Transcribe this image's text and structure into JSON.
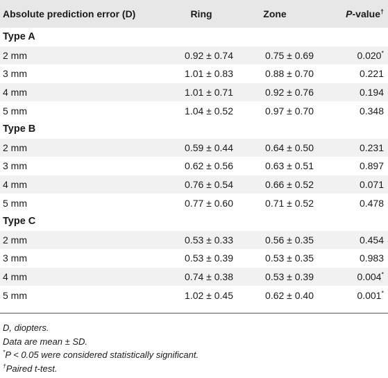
{
  "table": {
    "headers": {
      "col1": "Absolute prediction error (D)",
      "col2": "Ring",
      "col3": "Zone",
      "col4_italic": "P",
      "col4_rest": "-value",
      "col4_sup": "†"
    },
    "groups": [
      {
        "label": "Type A",
        "rows": [
          {
            "size": "2 mm",
            "ring": "0.92 ± 0.74",
            "zone": "0.75 ± 0.69",
            "p": "0.020",
            "sig": "*"
          },
          {
            "size": "3 mm",
            "ring": "1.01 ± 0.83",
            "zone": "0.88 ± 0.70",
            "p": "0.221",
            "sig": ""
          },
          {
            "size": "4 mm",
            "ring": "1.01 ± 0.71",
            "zone": "0.92 ± 0.76",
            "p": "0.194",
            "sig": ""
          },
          {
            "size": "5 mm",
            "ring": "1.04 ± 0.52",
            "zone": "0.97 ± 0.70",
            "p": "0.348",
            "sig": ""
          }
        ]
      },
      {
        "label": "Type B",
        "rows": [
          {
            "size": "2 mm",
            "ring": "0.59 ± 0.44",
            "zone": "0.64 ± 0.50",
            "p": "0.231",
            "sig": ""
          },
          {
            "size": "3 mm",
            "ring": "0.62 ± 0.56",
            "zone": "0.63 ± 0.51",
            "p": "0.897",
            "sig": ""
          },
          {
            "size": "4 mm",
            "ring": "0.76 ± 0.54",
            "zone": "0.66 ± 0.52",
            "p": "0.071",
            "sig": ""
          },
          {
            "size": "5 mm",
            "ring": "0.77 ± 0.60",
            "zone": "0.71 ± 0.52",
            "p": "0.478",
            "sig": ""
          }
        ]
      },
      {
        "label": "Type C",
        "rows": [
          {
            "size": "2 mm",
            "ring": "0.53 ± 0.33",
            "zone": "0.56 ± 0.35",
            "p": "0.454",
            "sig": ""
          },
          {
            "size": "3 mm",
            "ring": "0.53 ± 0.39",
            "zone": "0.53 ± 0.35",
            "p": "0.983",
            "sig": ""
          },
          {
            "size": "4 mm",
            "ring": "0.74 ± 0.38",
            "zone": "0.53 ± 0.39",
            "p": "0.004",
            "sig": "*"
          },
          {
            "size": "5 mm",
            "ring": "1.02 ± 0.45",
            "zone": "0.62 ± 0.40",
            "p": "0.001",
            "sig": "*"
          }
        ]
      }
    ]
  },
  "notes": {
    "abbrev": "D, diopters.",
    "data_desc": "Data are mean ± SD.",
    "sig_sup": "*",
    "sig_text": "P < 0.05 were considered statistically significant.",
    "test_sup": "†",
    "test_text": "Paired t-test."
  }
}
